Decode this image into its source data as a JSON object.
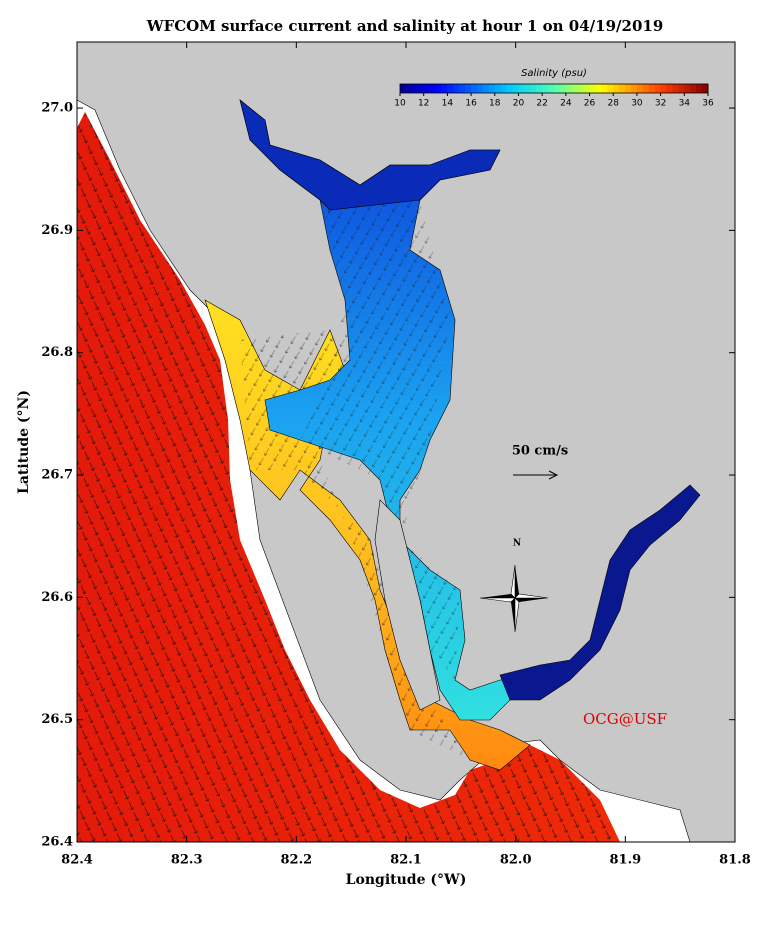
{
  "title": "WFCOM surface current and salinity at hour 1 on 04/19/2019",
  "colorbar": {
    "label": "Salinity (psu)",
    "ticks": [
      10,
      12,
      14,
      16,
      18,
      20,
      22,
      24,
      26,
      28,
      30,
      32,
      34,
      36
    ]
  },
  "x_axis": {
    "label": "Longitude (°W)",
    "lim": [
      82.4,
      81.8
    ],
    "ticks": [
      82.4,
      82.3,
      82.2,
      82.1,
      {
        "value": 82,
        "label": "82.0"
      },
      81.9,
      81.8
    ]
  },
  "y_axis": {
    "label": "Latitude (°N)",
    "lim": [
      26.4,
      27.054
    ],
    "ticks": [
      26.4,
      26.5,
      26.6,
      26.7,
      26.8,
      26.9,
      {
        "value": 27,
        "label": "27.0"
      }
    ]
  },
  "scale_label": "50 cm/s",
  "north_label": "N",
  "credit": "OCG@USF"
}
